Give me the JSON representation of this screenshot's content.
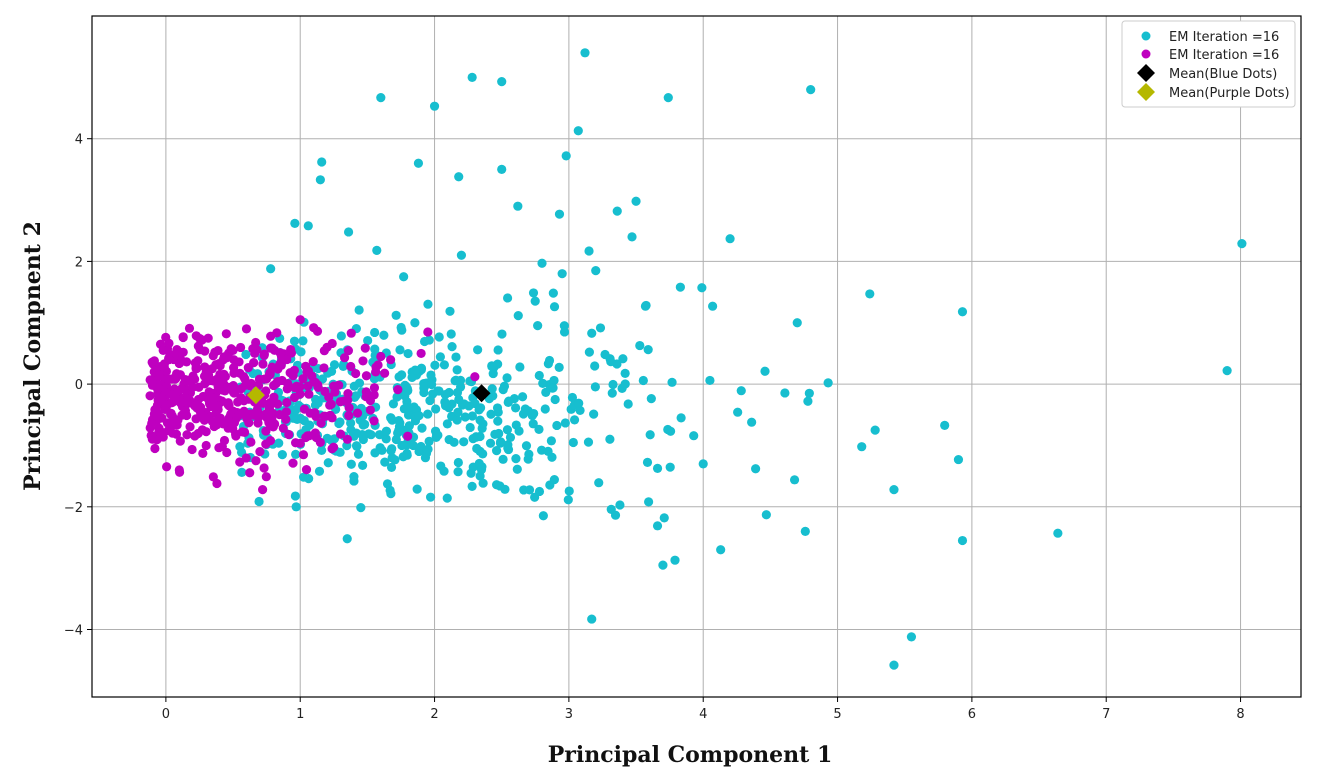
{
  "chart_data": {
    "type": "scatter",
    "title": "",
    "xlabel": "Principal Component 1",
    "ylabel": "Principal Compnent 2",
    "xlim": [
      -0.55,
      8.45
    ],
    "ylim": [
      -5.1,
      6.0
    ],
    "xticks": [
      0,
      1,
      2,
      3,
      4,
      5,
      6,
      7,
      8
    ],
    "yticks": [
      -4,
      -2,
      0,
      2,
      4
    ],
    "ytick_labels": [
      "−4",
      "−2",
      "0",
      "2",
      "4"
    ],
    "grid": true,
    "legend_position": "top-right",
    "series": [
      {
        "name": "EM Iteration =16",
        "color": "#17becf",
        "marker": "circle",
        "note_seeded_points": 520,
        "points": [
          [
            3.12,
            5.4
          ],
          [
            2.28,
            5.0
          ],
          [
            2.5,
            4.93
          ],
          [
            3.74,
            4.67
          ],
          [
            4.8,
            4.8
          ],
          [
            1.6,
            4.67
          ],
          [
            2.0,
            4.53
          ],
          [
            3.07,
            4.13
          ],
          [
            2.98,
            3.72
          ],
          [
            1.16,
            3.62
          ],
          [
            1.88,
            3.6
          ],
          [
            2.18,
            3.38
          ],
          [
            1.15,
            3.33
          ],
          [
            2.5,
            3.5
          ],
          [
            3.5,
            2.98
          ],
          [
            2.62,
            2.9
          ],
          [
            3.36,
            2.82
          ],
          [
            2.93,
            2.77
          ],
          [
            1.06,
            2.58
          ],
          [
            0.96,
            2.62
          ],
          [
            1.36,
            2.48
          ],
          [
            3.47,
            2.4
          ],
          [
            4.2,
            2.37
          ],
          [
            2.2,
            2.1
          ],
          [
            3.15,
            2.17
          ],
          [
            8.01,
            2.29
          ],
          [
            5.93,
            1.18
          ],
          [
            5.24,
            1.47
          ],
          [
            4.7,
            1.0
          ],
          [
            3.99,
            1.57
          ],
          [
            3.83,
            1.58
          ],
          [
            3.57,
            1.27
          ],
          [
            4.07,
            1.27
          ],
          [
            7.9,
            0.22
          ],
          [
            4.93,
            0.02
          ],
          [
            4.79,
            -0.15
          ],
          [
            4.46,
            0.21
          ],
          [
            5.18,
            -1.02
          ],
          [
            5.28,
            -0.75
          ],
          [
            5.42,
            -1.72
          ],
          [
            4.47,
            -2.13
          ],
          [
            4.76,
            -2.4
          ],
          [
            4.13,
            -2.7
          ],
          [
            3.7,
            -2.95
          ],
          [
            3.66,
            -2.31
          ],
          [
            3.71,
            -2.18
          ],
          [
            3.79,
            -2.87
          ],
          [
            3.17,
            -3.83
          ],
          [
            5.42,
            -4.58
          ],
          [
            5.55,
            -4.12
          ],
          [
            5.93,
            -2.55
          ],
          [
            5.9,
            -1.23
          ],
          [
            6.64,
            -2.43
          ],
          [
            1.35,
            -2.52
          ],
          [
            4.68,
            -1.56
          ],
          [
            4.39,
            -1.38
          ],
          [
            4.0,
            -1.3
          ],
          [
            3.38,
            -1.97
          ],
          [
            0.97,
            -2.0
          ],
          [
            2.8,
            1.97
          ],
          [
            1.77,
            1.75
          ],
          [
            1.57,
            2.18
          ],
          [
            0.78,
            1.88
          ],
          [
            3.2,
            1.85
          ],
          [
            2.95,
            1.8
          ]
        ]
      },
      {
        "name": "EM Iteration =16",
        "color": "#bf00bf",
        "marker": "circle",
        "points": [
          [
            -0.02,
            0.55
          ],
          [
            0.27,
            0.72
          ],
          [
            0.45,
            0.82
          ],
          [
            0.6,
            0.9
          ],
          [
            0.78,
            0.78
          ],
          [
            1.0,
            1.05
          ],
          [
            1.1,
            0.92
          ],
          [
            1.38,
            0.83
          ],
          [
            1.95,
            0.85
          ],
          [
            -0.1,
            -0.02
          ],
          [
            -0.08,
            -0.9
          ],
          [
            0.1,
            -1.4
          ],
          [
            0.38,
            -1.62
          ],
          [
            0.72,
            -1.72
          ],
          [
            0.3,
            -1.0
          ],
          [
            0.05,
            -0.8
          ],
          [
            0.7,
            -1.1
          ],
          [
            1.15,
            -0.95
          ],
          [
            1.55,
            -0.6
          ],
          [
            1.8,
            -0.85
          ],
          [
            2.3,
            0.12
          ],
          [
            1.9,
            0.5
          ],
          [
            1.6,
            0.45
          ],
          [
            1.2,
            0.6
          ],
          [
            0.9,
            0.4
          ],
          [
            0.5,
            0.55
          ]
        ]
      },
      {
        "name": "Mean(Blue Dots)",
        "color": "#000000",
        "marker": "diamond",
        "points": [
          [
            2.35,
            -0.15
          ]
        ]
      },
      {
        "name": "Mean(Purple Dots)",
        "color": "#b5b800",
        "marker": "diamond",
        "points": [
          [
            0.67,
            -0.18
          ]
        ]
      }
    ]
  }
}
